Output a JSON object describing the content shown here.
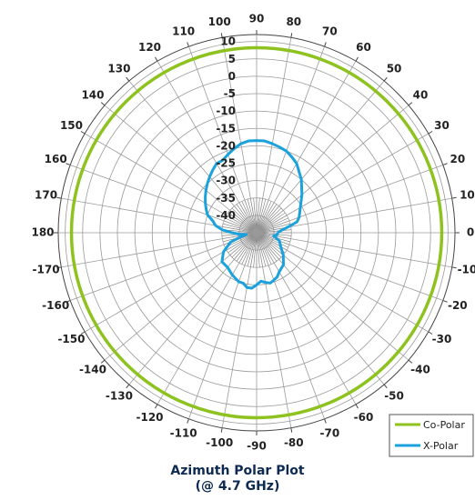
{
  "chart_data": {
    "type": "polar",
    "title": "Azimuth Polar Plot",
    "subtitle": "(@ 4.7 GHz)",
    "angle_ticks": [
      {
        "deg": 0,
        "label": "0"
      },
      {
        "deg": 10,
        "label": "10"
      },
      {
        "deg": 20,
        "label": "20"
      },
      {
        "deg": 30,
        "label": "30"
      },
      {
        "deg": 40,
        "label": "40"
      },
      {
        "deg": 50,
        "label": "50"
      },
      {
        "deg": 60,
        "label": "60"
      },
      {
        "deg": 70,
        "label": "70"
      },
      {
        "deg": 80,
        "label": "80"
      },
      {
        "deg": 90,
        "label": "90"
      },
      {
        "deg": 100,
        "label": "100"
      },
      {
        "deg": 110,
        "label": "110"
      },
      {
        "deg": 120,
        "label": "120"
      },
      {
        "deg": 130,
        "label": "130"
      },
      {
        "deg": 140,
        "label": "140"
      },
      {
        "deg": 150,
        "label": "150"
      },
      {
        "deg": 160,
        "label": "160"
      },
      {
        "deg": 170,
        "label": "170"
      },
      {
        "deg": 180,
        "label": "180"
      },
      {
        "deg": 190,
        "label": "-170"
      },
      {
        "deg": 200,
        "label": "-160"
      },
      {
        "deg": 210,
        "label": "-150"
      },
      {
        "deg": 220,
        "label": "-140"
      },
      {
        "deg": 230,
        "label": "-130"
      },
      {
        "deg": 240,
        "label": "-120"
      },
      {
        "deg": 250,
        "label": "-110"
      },
      {
        "deg": 260,
        "label": "-100"
      },
      {
        "deg": 270,
        "label": "-90"
      },
      {
        "deg": 280,
        "label": "-80"
      },
      {
        "deg": 290,
        "label": "-70"
      },
      {
        "deg": 300,
        "label": "-60"
      },
      {
        "deg": 310,
        "label": "-50"
      },
      {
        "deg": 320,
        "label": "-40"
      },
      {
        "deg": 330,
        "label": "-30"
      },
      {
        "deg": 340,
        "label": "-20"
      },
      {
        "deg": 350,
        "label": "-10"
      }
    ],
    "radial_ticks": [
      "10",
      "5",
      "0",
      "-5",
      "-10",
      "-15",
      "-20",
      "-25",
      "-30",
      "-35",
      "-40"
    ],
    "radial_range": [
      -45,
      12
    ],
    "spoke_step_deg": 10,
    "center_spoke_step_deg": 5,
    "grid": true,
    "legend_position": "bottom-right",
    "series": [
      {
        "name": "Co-Polar",
        "color": "#8dc21f",
        "theta": [
          0,
          30,
          60,
          90,
          120,
          150,
          180,
          210,
          240,
          270,
          300,
          330,
          360
        ],
        "r": [
          8.2,
          8.2,
          8.2,
          8.2,
          8.2,
          8.2,
          8.2,
          8.2,
          8.2,
          8.2,
          8.2,
          8.2,
          8.2
        ]
      },
      {
        "name": "X-Polar",
        "color": "#1ba1dc",
        "theta": [
          0,
          5,
          10,
          15,
          20,
          30,
          40,
          50,
          60,
          65,
          70,
          75,
          80,
          85,
          90,
          95,
          100,
          105,
          110,
          115,
          120,
          125,
          130,
          135,
          140,
          145,
          150,
          155,
          160,
          165,
          170,
          175,
          180,
          185,
          190,
          195,
          200,
          210,
          220,
          230,
          240,
          250,
          255,
          260,
          265,
          270,
          275,
          280,
          285,
          290,
          295,
          300,
          310,
          320,
          330,
          340,
          350,
          355,
          360
        ],
        "r": [
          -39,
          -38,
          -36,
          -33,
          -32,
          -30.5,
          -28,
          -25,
          -22,
          -21,
          -20,
          -19.5,
          -19,
          -18.5,
          -18.5,
          -18.5,
          -19,
          -20,
          -21,
          -22,
          -22,
          -23,
          -24,
          -25,
          -26,
          -27,
          -28,
          -29,
          -30,
          -32,
          -33,
          -35,
          -38,
          -40,
          -42,
          -40,
          -37,
          -34,
          -32,
          -32,
          -31,
          -30,
          -30,
          -29,
          -29,
          -30,
          -31,
          -30.5,
          -30,
          -30.5,
          -31,
          -32,
          -33,
          -35,
          -37,
          -38,
          -40,
          -39,
          -39
        ]
      }
    ]
  }
}
